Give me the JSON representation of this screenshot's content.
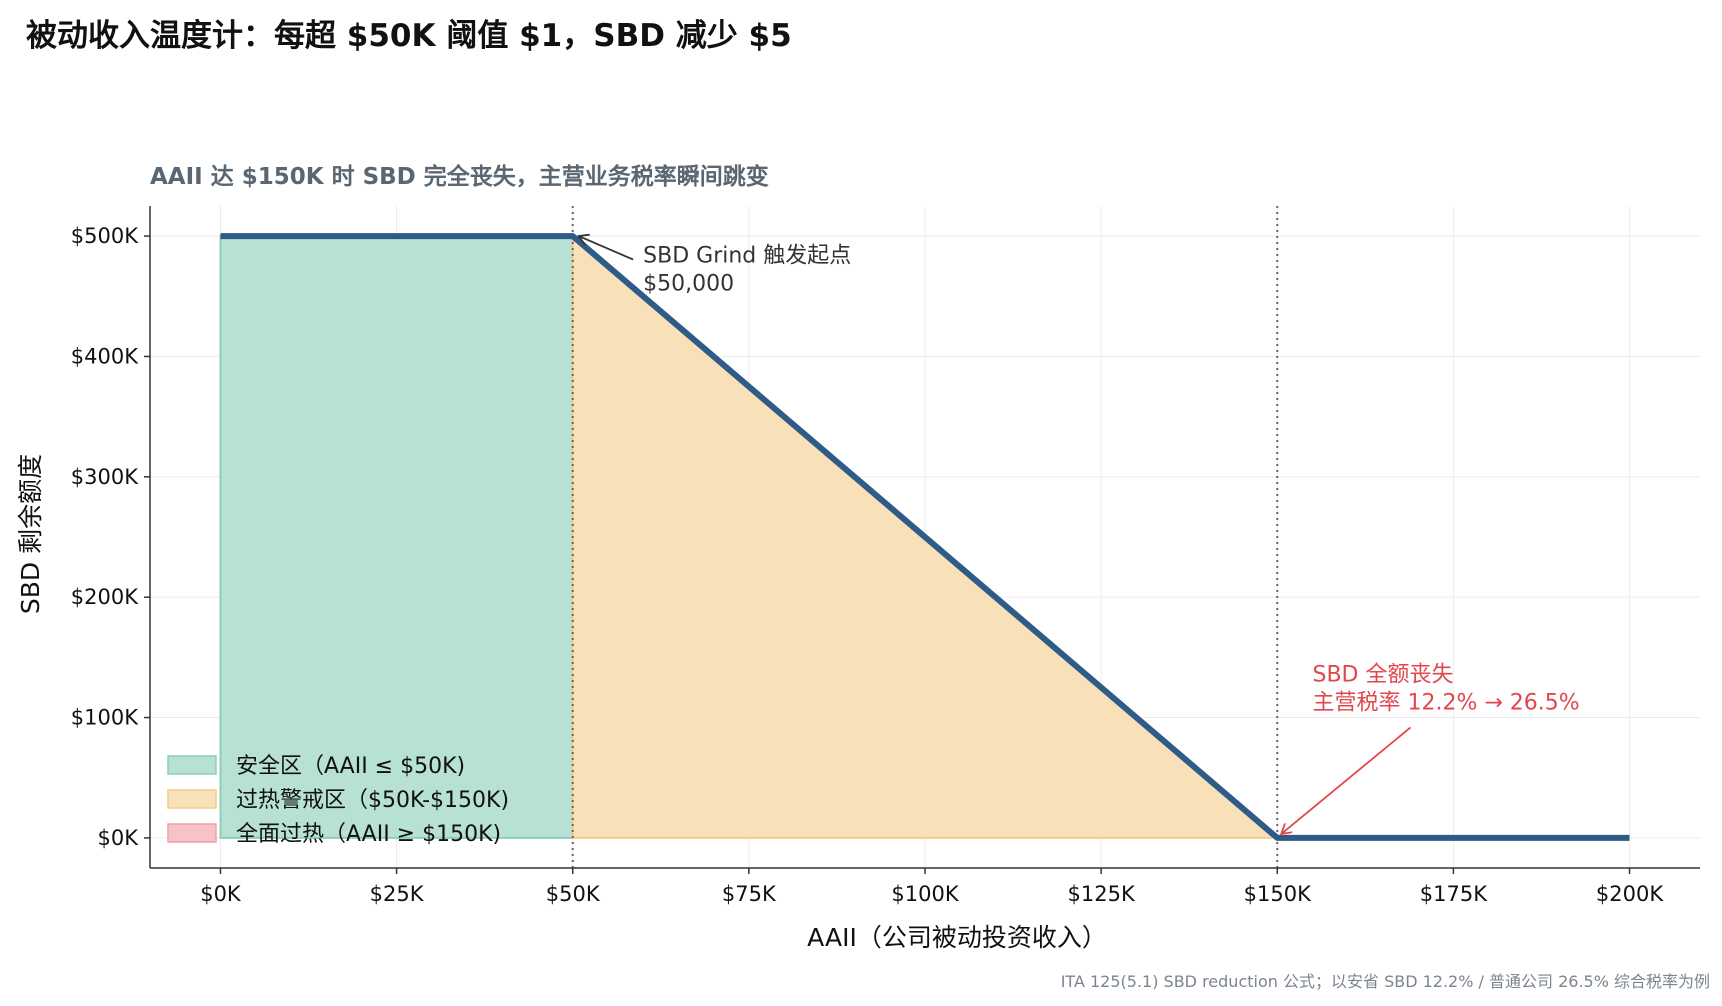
{
  "title": "被动收入温度计：每超 $50K 阈值 $1，SBD 减少 $5",
  "subtitle": "AAII 达 $150K 时 SBD 完全丧失，主营业务税率瞬间跳变",
  "footnote": "ITA 125(5.1) SBD reduction 公式；以安省 SBD 12.2% / 普通公司 26.5% 综合税率为例",
  "colors": {
    "line": "#2e5b87",
    "safe_fill": "#b8e1d6",
    "safe_edge": "#8fcdb9",
    "warn_fill": "#f8e0b8",
    "warn_edge": "#f3cc8e",
    "hot_fill": "#f6c4c8",
    "hot_edge": "#eea1a7",
    "annotation_red": "#e0474c",
    "annotation_dark": "#333333",
    "subtitle": "#5a6672",
    "footnote": "#7b8490"
  },
  "chart_data": {
    "type": "line",
    "xlabel": "AAII（公司被动投资收入）",
    "ylabel": "SBD 剩余额度",
    "xlim": [
      -10000,
      210000
    ],
    "ylim": [
      -25000,
      525000
    ],
    "x_ticks": [
      0,
      25000,
      50000,
      75000,
      100000,
      125000,
      150000,
      175000,
      200000
    ],
    "x_tick_labels": [
      "$0K",
      "$25K",
      "$50K",
      "$75K",
      "$100K",
      "$125K",
      "$150K",
      "$175K",
      "$200K"
    ],
    "y_ticks": [
      0,
      100000,
      200000,
      300000,
      400000,
      500000
    ],
    "y_tick_labels": [
      "$0K",
      "$100K",
      "$200K",
      "$300K",
      "$400K",
      "$500K"
    ],
    "grid": true,
    "series": [
      {
        "x": [
          0,
          50000,
          150000,
          200000
        ],
        "y": [
          500000,
          500000,
          0,
          0
        ]
      }
    ],
    "regions": [
      {
        "name": "安全区（AAII ≤ $50K)",
        "x_from": 0,
        "x_to": 50000,
        "color": "safe"
      },
      {
        "name": "过热警戒区（$50K-$150K)",
        "x_from": 50000,
        "x_to": 150000,
        "color": "warn"
      },
      {
        "name": "全面过热（AAII ≥ $150K)",
        "x_from": 150000,
        "x_to": 200000,
        "color": "hot"
      }
    ],
    "vlines": [
      50000,
      150000
    ],
    "annotations": [
      {
        "lines": [
          "SBD Grind 触发起点",
          "$50,000"
        ],
        "point": [
          50000,
          500000
        ],
        "text_at": [
          60000,
          478000
        ],
        "color": "dark"
      },
      {
        "lines": [
          "SBD 全额丧失",
          "主营税率 12.2% → 26.5%"
        ],
        "point": [
          150000,
          0
        ],
        "text_at": [
          155000,
          130000
        ],
        "color": "red"
      }
    ],
    "legend_position": "lower-left"
  }
}
